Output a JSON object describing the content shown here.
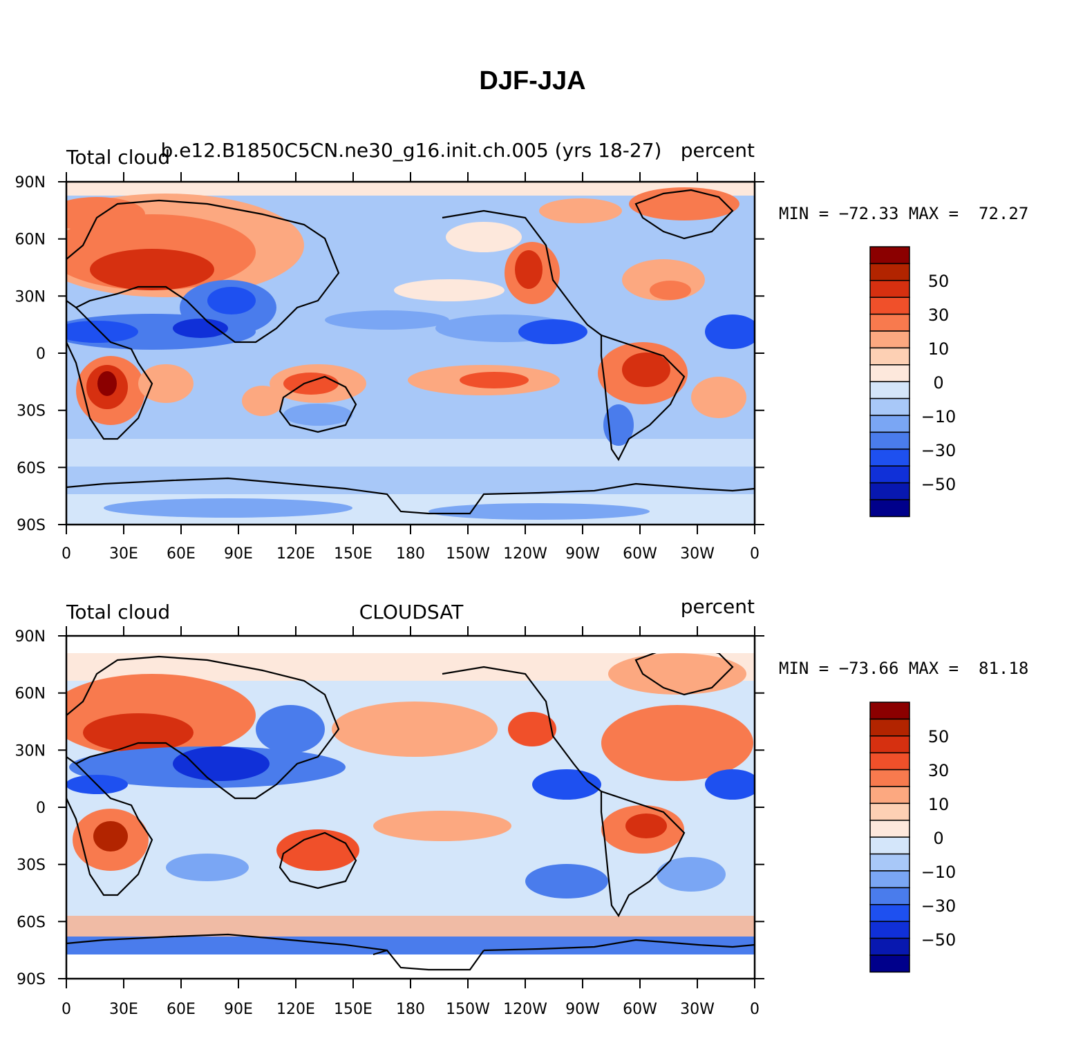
{
  "title": "DJF-JJA",
  "panels": [
    {
      "left_label": "Total cloud",
      "center_label": "b.e12.B1850C5CN.ne30_g16.init.ch.005 (yrs 18-27)",
      "right_label": "percent",
      "min_label": "MIN =",
      "min_value": "−72.33",
      "max_label": "MAX =",
      "max_value": "72.27"
    },
    {
      "left_label": "Total cloud",
      "center_label": "CLOUDSAT",
      "right_label": "percent",
      "min_label": "MIN =",
      "min_value": "−73.66",
      "max_label": "MAX =",
      "max_value": "81.18"
    }
  ],
  "axes": {
    "lat_labels": [
      "90N",
      "60N",
      "30N",
      "0",
      "30S",
      "60S",
      "90S"
    ],
    "lon_labels": [
      "0",
      "30E",
      "60E",
      "90E",
      "120E",
      "150E",
      "180",
      "150W",
      "120W",
      "90W",
      "60W",
      "30W",
      "0"
    ]
  },
  "colorbar": {
    "colors": [
      "#8b0000",
      "#b22400",
      "#d63010",
      "#f0502a",
      "#f87a4e",
      "#fca880",
      "#fdd0b4",
      "#fde8dc",
      "#d4e6fa",
      "#a8c8f8",
      "#7aa6f4",
      "#4a7cec",
      "#1e50f0",
      "#1030d8",
      "#0818b0",
      "#00008b"
    ],
    "tick_labels": [
      "50",
      "30",
      "10",
      "0",
      "−10",
      "−30",
      "−50"
    ]
  }
}
